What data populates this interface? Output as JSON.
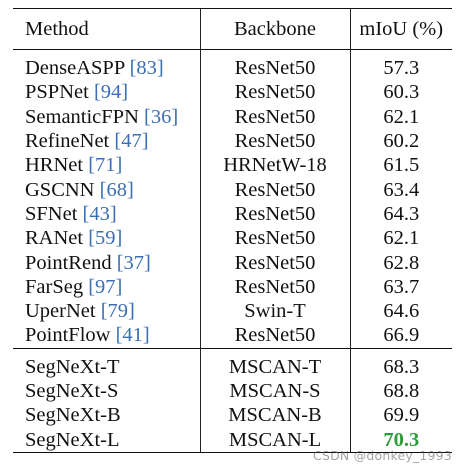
{
  "table": {
    "headers": {
      "method": "Method",
      "backbone": "Backbone",
      "miou": "mIoU (%)"
    },
    "group1": [
      {
        "method": "DenseASPP",
        "ref": "[83]",
        "backbone": "ResNet50",
        "miou": "57.3"
      },
      {
        "method": "PSPNet",
        "ref": "[94]",
        "backbone": "ResNet50",
        "miou": "60.3"
      },
      {
        "method": "SemanticFPN",
        "ref": "[36]",
        "backbone": "ResNet50",
        "miou": "62.1"
      },
      {
        "method": "RefineNet",
        "ref": "[47]",
        "backbone": "ResNet50",
        "miou": "60.2"
      },
      {
        "method": "HRNet",
        "ref": "[71]",
        "backbone": "HRNetW-18",
        "miou": "61.5"
      },
      {
        "method": "GSCNN",
        "ref": "[68]",
        "backbone": "ResNet50",
        "miou": "63.4"
      },
      {
        "method": "SFNet",
        "ref": "[43]",
        "backbone": "ResNet50",
        "miou": "64.3"
      },
      {
        "method": "RANet",
        "ref": "[59]",
        "backbone": "ResNet50",
        "miou": "62.1"
      },
      {
        "method": "PointRend",
        "ref": "[37]",
        "backbone": "ResNet50",
        "miou": "62.8"
      },
      {
        "method": "FarSeg",
        "ref": "[97]",
        "backbone": "ResNet50",
        "miou": "63.7"
      },
      {
        "method": "UperNet",
        "ref": "[79]",
        "backbone": "Swin-T",
        "miou": "64.6"
      },
      {
        "method": "PointFlow",
        "ref": "[41]",
        "backbone": "ResNet50",
        "miou": "66.9"
      }
    ],
    "group2": [
      {
        "method": "SegNeXt-T",
        "backbone": "MSCAN-T",
        "miou": "68.3"
      },
      {
        "method": "SegNeXt-S",
        "backbone": "MSCAN-S",
        "miou": "68.8"
      },
      {
        "method": "SegNeXt-B",
        "backbone": "MSCAN-B",
        "miou": "69.9"
      },
      {
        "method": "SegNeXt-L",
        "backbone": "MSCAN-L",
        "miou": "70.3",
        "best": true
      }
    ]
  },
  "colors": {
    "reference_link": "#3a6fb5",
    "best_value": "#2e9a3a"
  },
  "watermark": "CSDN @donkey_1993"
}
